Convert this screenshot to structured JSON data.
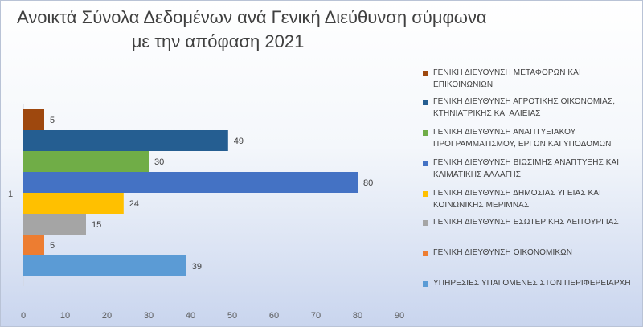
{
  "chart_data": {
    "type": "bar",
    "orientation": "horizontal",
    "title": "Ανοικτά Σύνολα Δεδομένων ανά Γενική Διεύθυνση σύμφωνα με την απόφαση 2021",
    "title_lines": [
      "Ανοικτά Σύνολα Δεδομένων ανά Γενική Διεύθυνση σύμφωνα",
      "με την απόφαση 2021"
    ],
    "categories": [
      "1"
    ],
    "xlim": [
      0,
      90
    ],
    "x_ticks": [
      0,
      10,
      20,
      30,
      40,
      50,
      60,
      70,
      80,
      90
    ],
    "grid": false,
    "legend_position": "right",
    "series": [
      {
        "name": "ΓΕΝΙΚΗ ΔΙΕΥΘΥΝΣΗ ΜΕΤΑΦΟΡΩΝ ΚΑΙ ΕΠΙΚΟΙΝΩΝΙΩΝ",
        "values": [
          5
        ],
        "color": "#9e480e"
      },
      {
        "name": "ΓΕΝΙΚΗ ΔΙΕΥΘΥΝΣΗ ΑΓΡΟΤΙΚΗΣ ΟΙΚΟΝΟΜΙΑΣ, ΚΤΗΝΙΑΤΡΙΚΗΣ ΚΑΙ ΑΛΙΕΙΑΣ",
        "values": [
          49
        ],
        "color": "#255e91"
      },
      {
        "name": "ΓΕΝΙΚΗ ΔΙΕΥΘΥΝΣΗ ΑΝΑΠΤΥΞΙΑΚΟΥ ΠΡΟΓΡΑΜΜΑΤΙΣΜΟΥ, ΕΡΓΩΝ ΚΑΙ ΥΠΟΔΟΜΩΝ",
        "values": [
          30
        ],
        "color": "#70ad47"
      },
      {
        "name": "ΓΕΝΙΚΗ ΔΙΕΥΘΥΝΣΗ ΒΙΩΣΙΜΗΣ ΑΝΑΠΤΥΞΗΣ ΚΑΙ ΚΛΙΜΑΤΙΚΗΣ ΑΛΛΑΓΗΣ",
        "values": [
          80
        ],
        "color": "#4472c4"
      },
      {
        "name": "ΓΕΝΙΚΗ ΔΙΕΥΘΥΝΣΗ ΔΗΜΟΣΙΑΣ ΥΓΕΙΑΣ ΚΑΙ ΚΟΙΝΩΝΙΚΗΣ ΜΕΡΙΜΝΑΣ",
        "values": [
          24
        ],
        "color": "#ffc000"
      },
      {
        "name": "ΓΕΝΙΚΗ ΔΙΕΥΘΥΝΣΗ ΕΣΩΤΕΡΙΚΗΣ ΛΕΙΤΟΥΡΓΙΑΣ",
        "values": [
          15
        ],
        "color": "#a5a5a5"
      },
      {
        "name": "ΓΕΝΙΚΗ ΔΙΕΥΘΥΝΣΗ ΟΙΚΟΝΟΜΙΚΩΝ",
        "values": [
          5
        ],
        "color": "#ed7d31"
      },
      {
        "name": "ΥΠΗΡΕΣΙΕΣ ΥΠΑΓΟΜΕΝΕΣ ΣΤΟΝ ΠΕΡΙΦΕΡΕΙΑΡΧΗ",
        "values": [
          39
        ],
        "color": "#5b9bd5"
      }
    ]
  }
}
